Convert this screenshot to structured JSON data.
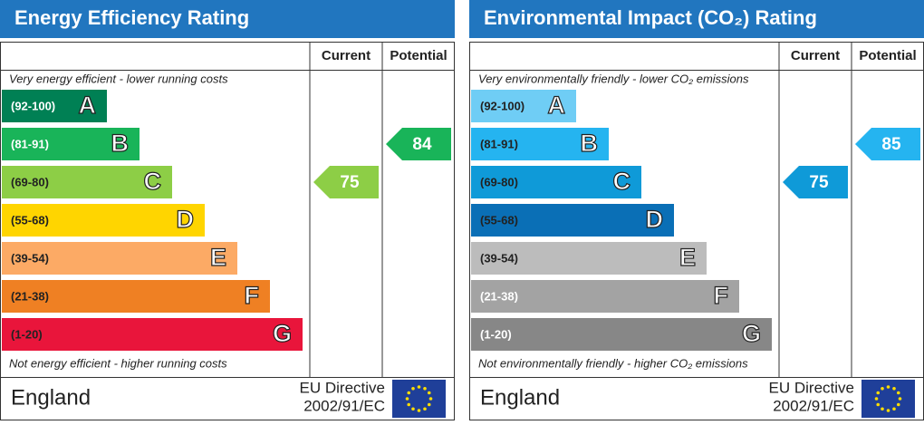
{
  "chart_data": [
    {
      "type": "epc",
      "title": "Energy Efficiency Rating",
      "columns": [
        "Current",
        "Potential"
      ],
      "top_note": "Very energy efficient - lower running costs",
      "bottom_note": "Not energy efficient - higher running costs",
      "bands": [
        {
          "range": "(92-100)",
          "letter": "A",
          "color": "#008054",
          "text_color": "#ffffff"
        },
        {
          "range": "(81-91)",
          "letter": "B",
          "color": "#19b459",
          "text_color": "#ffffff"
        },
        {
          "range": "(69-80)",
          "letter": "C",
          "color": "#8dce46",
          "text_color": "#222222"
        },
        {
          "range": "(55-68)",
          "letter": "D",
          "color": "#ffd500",
          "text_color": "#222222"
        },
        {
          "range": "(39-54)",
          "letter": "E",
          "color": "#fcaa65",
          "text_color": "#222222"
        },
        {
          "range": "(21-38)",
          "letter": "F",
          "color": "#ef8023",
          "text_color": "#222222"
        },
        {
          "range": "(1-20)",
          "letter": "G",
          "color": "#e9153b",
          "text_color": "#222222"
        }
      ],
      "current": 75,
      "potential": 84,
      "footer": "England",
      "directive": [
        "EU Directive",
        "2002/91/EC"
      ]
    },
    {
      "type": "epc",
      "title": "Environmental Impact (CO₂) Rating",
      "columns": [
        "Current",
        "Potential"
      ],
      "top_note": "Very environmentally friendly - lower CO₂ emissions",
      "bottom_note": "Not environmentally friendly - higher CO₂ emissions",
      "bands": [
        {
          "range": "(92-100)",
          "letter": "A",
          "color": "#6fcdf5",
          "text_color": "#222222"
        },
        {
          "range": "(81-91)",
          "letter": "B",
          "color": "#25b4f0",
          "text_color": "#222222"
        },
        {
          "range": "(69-80)",
          "letter": "C",
          "color": "#0f9ad8",
          "text_color": "#222222"
        },
        {
          "range": "(55-68)",
          "letter": "D",
          "color": "#0a6fb6",
          "text_color": "#222222"
        },
        {
          "range": "(39-54)",
          "letter": "E",
          "color": "#bcbcbc",
          "text_color": "#222222"
        },
        {
          "range": "(21-38)",
          "letter": "F",
          "color": "#a3a3a3",
          "text_color": "#ffffff"
        },
        {
          "range": "(1-20)",
          "letter": "G",
          "color": "#878787",
          "text_color": "#ffffff"
        }
      ],
      "current": 75,
      "potential": 85,
      "footer": "England",
      "directive": [
        "EU Directive",
        "2002/91/EC"
      ]
    }
  ]
}
